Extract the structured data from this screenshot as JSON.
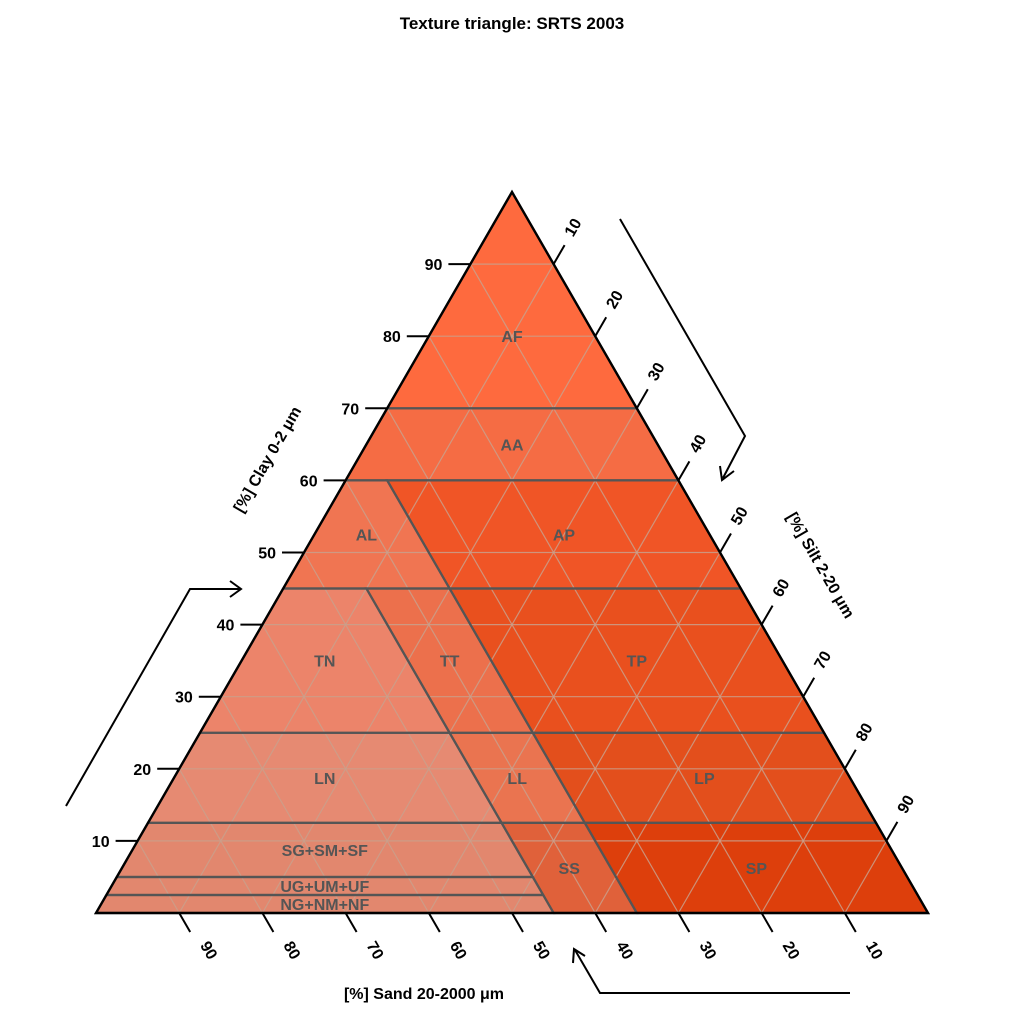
{
  "title": "Texture triangle: SRTS 2003",
  "axes": {
    "clay": {
      "label": "[%] Clay 0-2 μm",
      "ticks": [
        "10",
        "20",
        "30",
        "40",
        "50",
        "60",
        "70",
        "80",
        "90"
      ]
    },
    "silt": {
      "label": "[%] Silt 2-20 μm",
      "ticks": [
        "10",
        "20",
        "30",
        "40",
        "50",
        "60",
        "70",
        "80",
        "90"
      ]
    },
    "sand": {
      "label": "[%] Sand 20-2000 μm",
      "ticks": [
        "90",
        "80",
        "70",
        "60",
        "50",
        "40",
        "30",
        "20",
        "10"
      ]
    }
  },
  "colors": {
    "AF": "#fe6a3e",
    "AA": "#f56c44",
    "AL": "#f07552",
    "AP": "#f05526",
    "TN": "#ec846a",
    "TT": "#ec704c",
    "TP": "#e9501e",
    "LN": "#e68a72",
    "LL": "#ea7450",
    "LP": "#e34f1c",
    "SGSMSF": "#e2876e",
    "UGUMUF": "#e2876e",
    "NGNMNF": "#e2876e",
    "SS": "#e0613a",
    "SP": "#dd3f0c"
  },
  "chart_data": {
    "type": "ternary",
    "title": "Texture triangle: SRTS 2003",
    "axes": [
      "[%] Clay 0-2 μm",
      "[%] Silt 2-20 μm",
      "[%] Sand 20-2000 μm"
    ],
    "grid": true,
    "classes": [
      {
        "id": "AF",
        "label": "AF",
        "points": [
          [
            70,
            0,
            30
          ],
          [
            100,
            0,
            0
          ],
          [
            70,
            30,
            0
          ]
        ]
      },
      {
        "id": "AA",
        "label": "AA",
        "points": [
          [
            60,
            0,
            40
          ],
          [
            70,
            0,
            30
          ],
          [
            70,
            30,
            0
          ],
          [
            60,
            40,
            0
          ]
        ]
      },
      {
        "id": "AL",
        "label": "AL",
        "points": [
          [
            45,
            0,
            55
          ],
          [
            60,
            0,
            40
          ],
          [
            60,
            5,
            35
          ],
          [
            45,
            20,
            35
          ]
        ]
      },
      {
        "id": "AP",
        "label": "AP",
        "points": [
          [
            60,
            5,
            35
          ],
          [
            60,
            40,
            0
          ],
          [
            45,
            55,
            0
          ],
          [
            45,
            20,
            35
          ]
        ]
      },
      {
        "id": "TN",
        "label": "TN",
        "points": [
          [
            25,
            0,
            75
          ],
          [
            45,
            0,
            55
          ],
          [
            45,
            10,
            45
          ],
          [
            25,
            30,
            45
          ]
        ]
      },
      {
        "id": "TT",
        "label": "TT",
        "points": [
          [
            45,
            10,
            45
          ],
          [
            45,
            20,
            35
          ],
          [
            25,
            40,
            35
          ],
          [
            25,
            30,
            45
          ]
        ]
      },
      {
        "id": "TP",
        "label": "TP",
        "points": [
          [
            45,
            20,
            35
          ],
          [
            45,
            55,
            0
          ],
          [
            25,
            75,
            0
          ],
          [
            25,
            40,
            35
          ]
        ]
      },
      {
        "id": "LN",
        "label": "LN",
        "points": [
          [
            12.5,
            0,
            87.5
          ],
          [
            25,
            0,
            75
          ],
          [
            25,
            30,
            45
          ],
          [
            12.5,
            42.5,
            45
          ]
        ]
      },
      {
        "id": "LL",
        "label": "LL",
        "points": [
          [
            25,
            30,
            45
          ],
          [
            25,
            40,
            35
          ],
          [
            12.5,
            52.5,
            35
          ],
          [
            12.5,
            42.5,
            45
          ]
        ]
      },
      {
        "id": "LP",
        "label": "LP",
        "points": [
          [
            25,
            40,
            35
          ],
          [
            25,
            75,
            0
          ],
          [
            12.5,
            87.5,
            0
          ],
          [
            12.5,
            52.5,
            35
          ]
        ]
      },
      {
        "id": "SGSMSF",
        "label": "SG+SM+SF",
        "points": [
          [
            5,
            0,
            95
          ],
          [
            12.5,
            0,
            87.5
          ],
          [
            12.5,
            42.5,
            45
          ],
          [
            5,
            50,
            45
          ]
        ]
      },
      {
        "id": "UGUMUF",
        "label": "UG+UM+UF",
        "points": [
          [
            2.5,
            0,
            97.5
          ],
          [
            5,
            0,
            95
          ],
          [
            5,
            50,
            45
          ],
          [
            2.5,
            52.5,
            45
          ]
        ]
      },
      {
        "id": "NGNMNF",
        "label": "NG+NM+NF",
        "points": [
          [
            0,
            0,
            100
          ],
          [
            2.5,
            0,
            97.5
          ],
          [
            2.5,
            52.5,
            45
          ],
          [
            0,
            55,
            45
          ]
        ]
      },
      {
        "id": "SS",
        "label": "SS",
        "points": [
          [
            0,
            55,
            45
          ],
          [
            12.5,
            42.5,
            45
          ],
          [
            12.5,
            52.5,
            35
          ],
          [
            0,
            65,
            35
          ]
        ]
      },
      {
        "id": "SP",
        "label": "SP",
        "points": [
          [
            0,
            65,
            35
          ],
          [
            12.5,
            52.5,
            35
          ],
          [
            12.5,
            87.5,
            0
          ],
          [
            0,
            100,
            0
          ]
        ]
      }
    ]
  }
}
